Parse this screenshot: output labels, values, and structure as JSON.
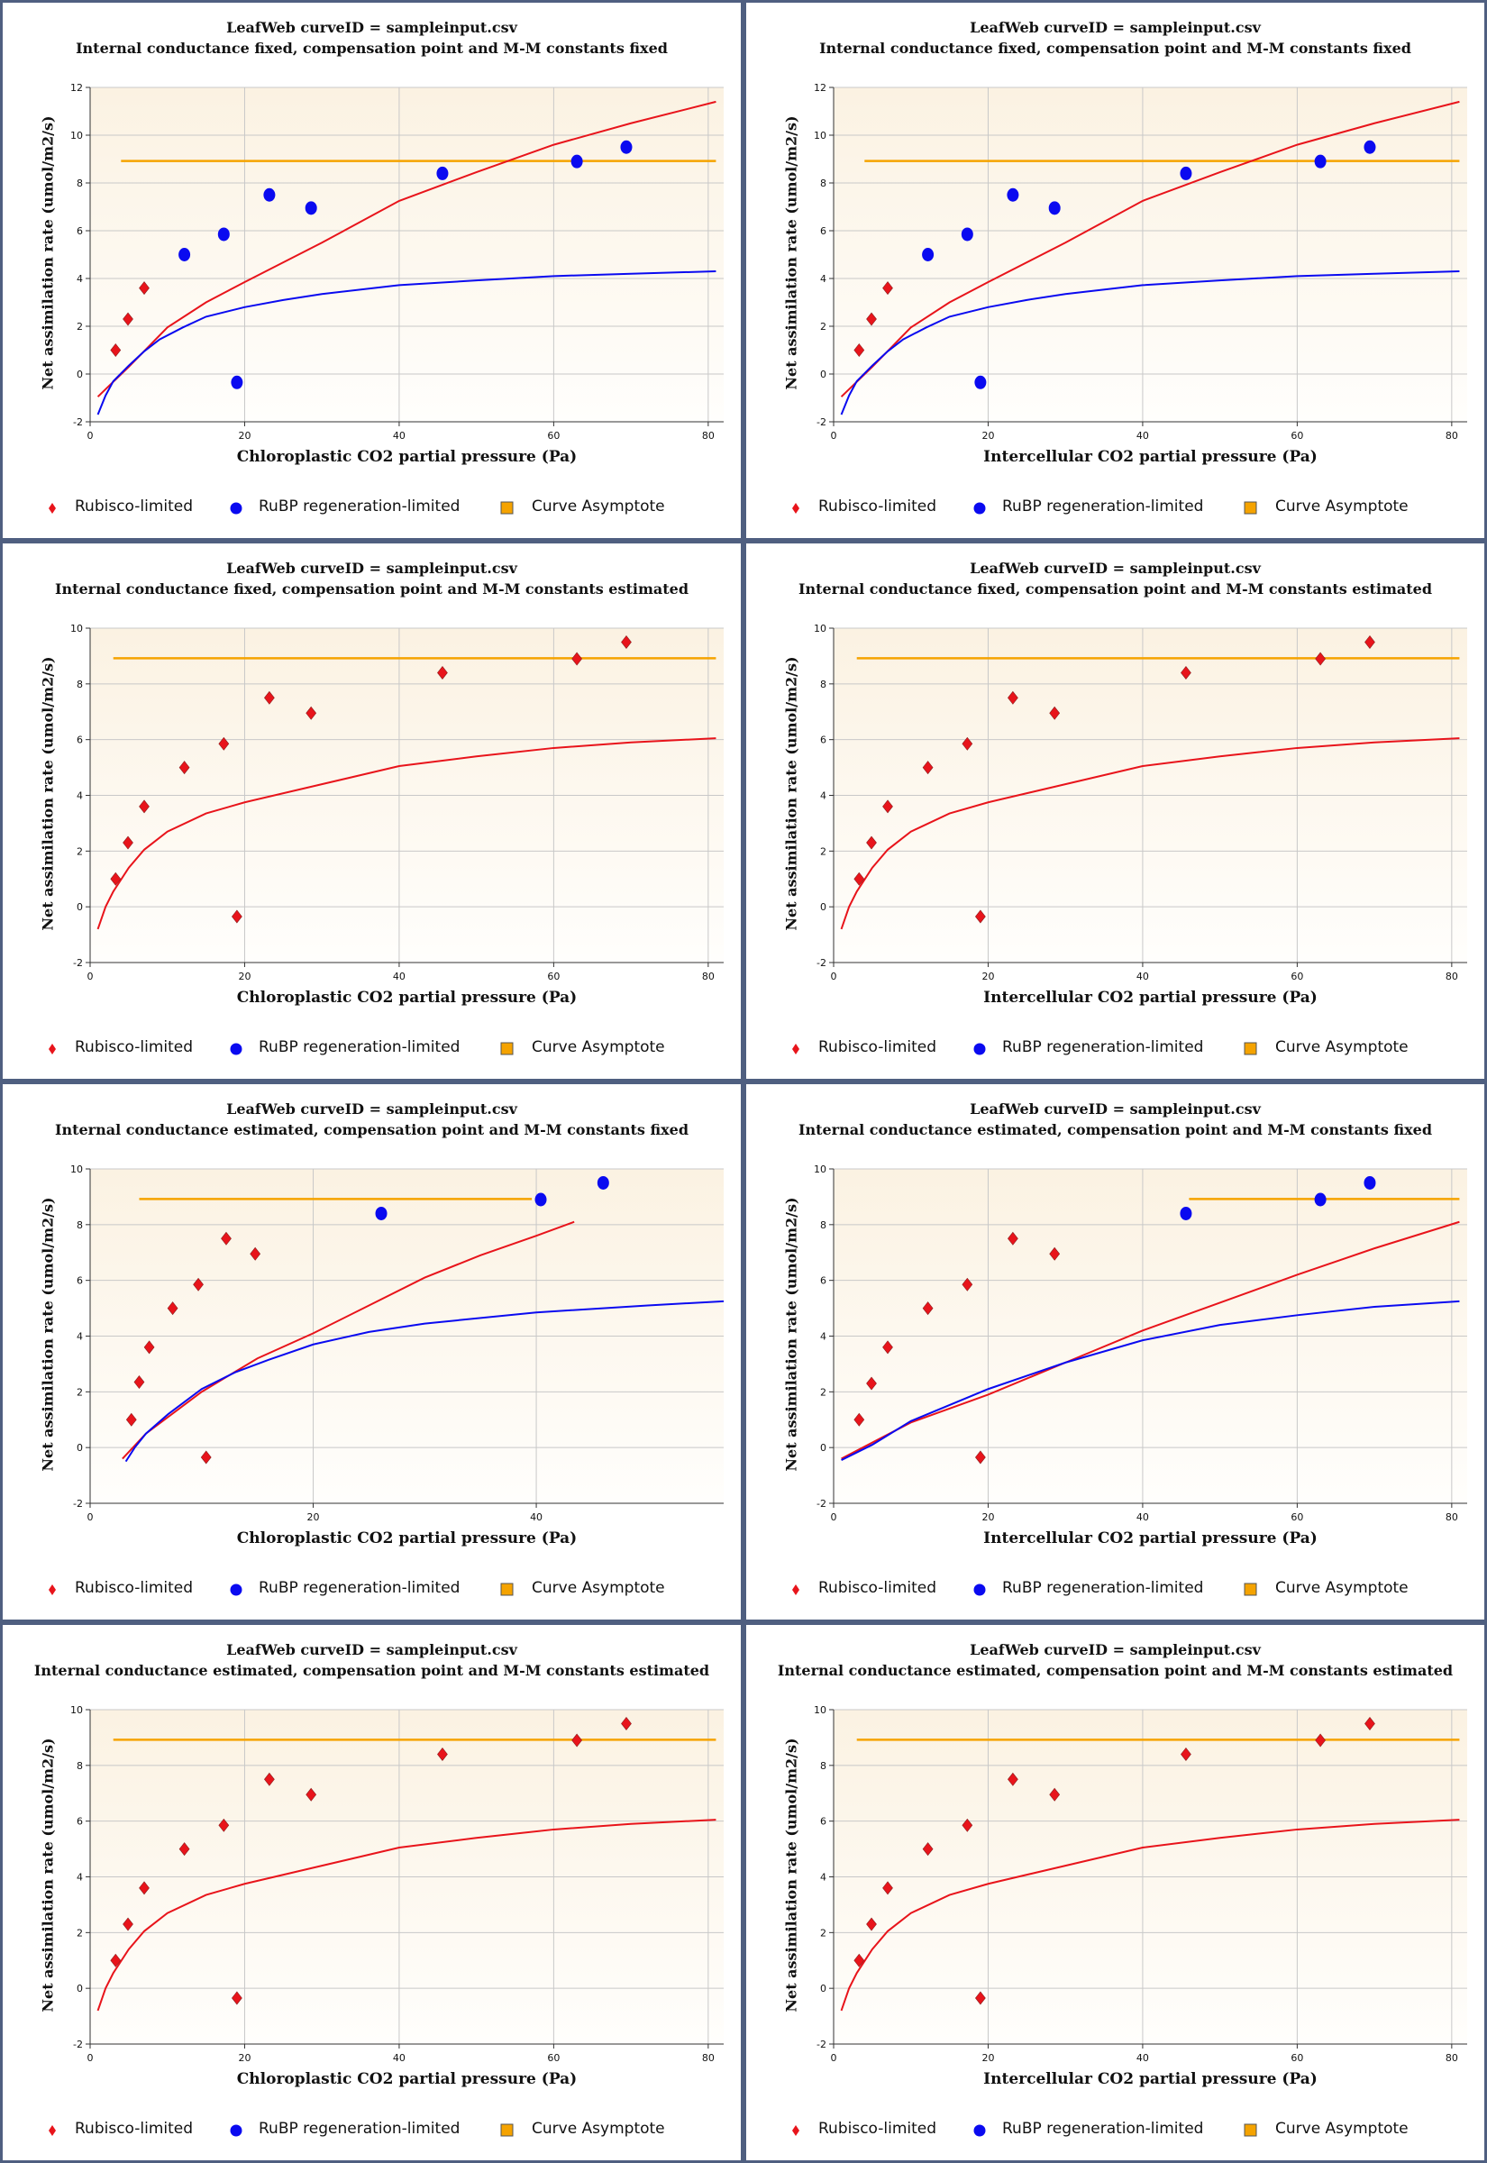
{
  "legend": {
    "rubisco": "Rubisco-limited",
    "rubp": "RuBP regeneration-limited",
    "asymptote": "Curve Asymptote"
  },
  "colors": {
    "rubisco": "#e8141b",
    "rubp": "#0a0af0",
    "asymptote": "#f5a300",
    "plot_bg_top": "#fbf2e2",
    "plot_bg_bottom": "#fffefc",
    "border": "#4f5f80"
  },
  "chart_data": [
    {
      "type": "scatter",
      "title": "LeafWeb curveID = sampleinput.csv",
      "subtitle": "Internal conductance fixed, compensation point and M-M constants fixed",
      "xlabel": "Chloroplastic CO2 partial pressure (Pa)",
      "ylabel": "Net assimilation rate (umol/m2/s)",
      "xlim": [
        0,
        82
      ],
      "ylim": [
        -2,
        12
      ],
      "xticks": [
        "0",
        "20",
        "40",
        "60",
        "80"
      ],
      "yticks": [
        "-2",
        "0",
        "2",
        "4",
        "6",
        "8",
        "10",
        "12"
      ],
      "grid": true,
      "legend_position": "bottom",
      "rubisco_points": [
        [
          3.3,
          1.0
        ],
        [
          4.9,
          2.3
        ],
        [
          7.0,
          3.6
        ]
      ],
      "rubp_points": [
        [
          12.2,
          5.0
        ],
        [
          17.3,
          5.85
        ],
        [
          19.0,
          -0.35
        ],
        [
          23.2,
          7.5
        ],
        [
          28.6,
          6.95
        ],
        [
          45.6,
          8.4
        ],
        [
          63.0,
          8.9
        ],
        [
          69.4,
          9.5
        ]
      ],
      "asymptote": {
        "y": 8.92,
        "x": [
          4,
          81
        ]
      },
      "rubisco_curve": [
        [
          1,
          -0.95
        ],
        [
          5,
          0.3
        ],
        [
          10,
          1.95
        ],
        [
          15,
          3.0
        ],
        [
          20,
          3.85
        ],
        [
          30,
          5.5
        ],
        [
          40,
          7.25
        ],
        [
          50,
          8.45
        ],
        [
          60,
          9.6
        ],
        [
          70,
          10.5
        ],
        [
          81,
          11.4
        ]
      ],
      "rubp_curve": [
        [
          1,
          -1.7
        ],
        [
          2,
          -0.9
        ],
        [
          3,
          -0.3
        ],
        [
          5,
          0.35
        ],
        [
          7,
          0.95
        ],
        [
          9,
          1.45
        ],
        [
          12,
          1.95
        ],
        [
          15,
          2.4
        ],
        [
          20,
          2.8
        ],
        [
          25,
          3.1
        ],
        [
          30,
          3.35
        ],
        [
          40,
          3.72
        ],
        [
          50,
          3.92
        ],
        [
          60,
          4.1
        ],
        [
          70,
          4.2
        ],
        [
          81,
          4.3
        ]
      ]
    },
    {
      "type": "scatter",
      "title": "LeafWeb curveID = sampleinput.csv",
      "subtitle": "Internal conductance fixed, compensation point and M-M constants fixed",
      "xlabel": "Intercellular CO2 partial pressure (Pa)",
      "ylabel": "Net assimilation rate (umol/m2/s)",
      "xlim": [
        0,
        82
      ],
      "ylim": [
        -2,
        12
      ],
      "xticks": [
        "0",
        "20",
        "40",
        "60",
        "80"
      ],
      "yticks": [
        "-2",
        "0",
        "2",
        "4",
        "6",
        "8",
        "10",
        "12"
      ],
      "grid": true,
      "legend_position": "bottom",
      "rubisco_points": [
        [
          3.3,
          1.0
        ],
        [
          4.9,
          2.3
        ],
        [
          7.0,
          3.6
        ]
      ],
      "rubp_points": [
        [
          12.2,
          5.0
        ],
        [
          17.3,
          5.85
        ],
        [
          19.0,
          -0.35
        ],
        [
          23.2,
          7.5
        ],
        [
          28.6,
          6.95
        ],
        [
          45.6,
          8.4
        ],
        [
          63.0,
          8.9
        ],
        [
          69.4,
          9.5
        ]
      ],
      "asymptote": {
        "y": 8.92,
        "x": [
          4,
          81
        ]
      },
      "rubisco_curve": [
        [
          1,
          -0.95
        ],
        [
          5,
          0.3
        ],
        [
          10,
          1.95
        ],
        [
          15,
          3.0
        ],
        [
          20,
          3.85
        ],
        [
          30,
          5.5
        ],
        [
          40,
          7.25
        ],
        [
          50,
          8.45
        ],
        [
          60,
          9.6
        ],
        [
          70,
          10.5
        ],
        [
          81,
          11.4
        ]
      ],
      "rubp_curve": [
        [
          1,
          -1.7
        ],
        [
          2,
          -0.9
        ],
        [
          3,
          -0.3
        ],
        [
          5,
          0.35
        ],
        [
          7,
          0.95
        ],
        [
          9,
          1.45
        ],
        [
          12,
          1.95
        ],
        [
          15,
          2.4
        ],
        [
          20,
          2.8
        ],
        [
          25,
          3.1
        ],
        [
          30,
          3.35
        ],
        [
          40,
          3.72
        ],
        [
          50,
          3.92
        ],
        [
          60,
          4.1
        ],
        [
          70,
          4.2
        ],
        [
          81,
          4.3
        ]
      ]
    },
    {
      "type": "scatter",
      "title": "LeafWeb curveID = sampleinput.csv",
      "subtitle": "Internal conductance fixed, compensation point and M-M constants estimated",
      "xlabel": "Chloroplastic CO2 partial pressure (Pa)",
      "ylabel": "Net assimilation rate (umol/m2/s)",
      "xlim": [
        0,
        82
      ],
      "ylim": [
        -2,
        10
      ],
      "xticks": [
        "0",
        "20",
        "40",
        "60",
        "80"
      ],
      "yticks": [
        "-2",
        "0",
        "2",
        "4",
        "6",
        "8",
        "10"
      ],
      "grid": true,
      "legend_position": "bottom",
      "rubisco_points": [
        [
          3.3,
          1.0
        ],
        [
          4.9,
          2.3
        ],
        [
          7.0,
          3.6
        ],
        [
          12.2,
          5.0
        ],
        [
          17.3,
          5.85
        ],
        [
          19.0,
          -0.35
        ],
        [
          23.2,
          7.5
        ],
        [
          28.6,
          6.95
        ],
        [
          45.6,
          8.4
        ],
        [
          63.0,
          8.9
        ],
        [
          69.4,
          9.5
        ]
      ],
      "rubp_points": [],
      "asymptote": {
        "y": 8.92,
        "x": [
          3,
          81
        ]
      },
      "rubisco_curve": [
        [
          1,
          -0.8
        ],
        [
          2,
          0
        ],
        [
          3,
          0.55
        ],
        [
          5,
          1.4
        ],
        [
          7,
          2.05
        ],
        [
          10,
          2.7
        ],
        [
          15,
          3.35
        ],
        [
          20,
          3.75
        ],
        [
          30,
          4.4
        ],
        [
          40,
          5.05
        ],
        [
          50,
          5.4
        ],
        [
          60,
          5.7
        ],
        [
          70,
          5.9
        ],
        [
          81,
          6.05
        ]
      ],
      "rubp_curve": []
    },
    {
      "type": "scatter",
      "title": "LeafWeb curveID = sampleinput.csv",
      "subtitle": "Internal conductance fixed, compensation point and M-M constants estimated",
      "xlabel": "Intercellular CO2 partial pressure (Pa)",
      "ylabel": "Net assimilation rate (umol/m2/s)",
      "xlim": [
        0,
        82
      ],
      "ylim": [
        -2,
        10
      ],
      "xticks": [
        "0",
        "20",
        "40",
        "60",
        "80"
      ],
      "yticks": [
        "-2",
        "0",
        "2",
        "4",
        "6",
        "8",
        "10"
      ],
      "grid": true,
      "legend_position": "bottom",
      "rubisco_points": [
        [
          3.3,
          1.0
        ],
        [
          4.9,
          2.3
        ],
        [
          7.0,
          3.6
        ],
        [
          12.2,
          5.0
        ],
        [
          17.3,
          5.85
        ],
        [
          19.0,
          -0.35
        ],
        [
          23.2,
          7.5
        ],
        [
          28.6,
          6.95
        ],
        [
          45.6,
          8.4
        ],
        [
          63.0,
          8.9
        ],
        [
          69.4,
          9.5
        ]
      ],
      "rubp_points": [],
      "asymptote": {
        "y": 8.92,
        "x": [
          3,
          81
        ]
      },
      "rubisco_curve": [
        [
          1,
          -0.8
        ],
        [
          2,
          0
        ],
        [
          3,
          0.55
        ],
        [
          5,
          1.4
        ],
        [
          7,
          2.05
        ],
        [
          10,
          2.7
        ],
        [
          15,
          3.35
        ],
        [
          20,
          3.75
        ],
        [
          30,
          4.4
        ],
        [
          40,
          5.05
        ],
        [
          50,
          5.4
        ],
        [
          60,
          5.7
        ],
        [
          70,
          5.9
        ],
        [
          81,
          6.05
        ]
      ],
      "rubp_curve": []
    },
    {
      "type": "scatter",
      "title": "LeafWeb curveID = sampleinput.csv",
      "subtitle": "Internal conductance estimated, compensation point and M-M constants fixed",
      "xlabel": "Chloroplastic CO2 partial pressure (Pa)",
      "ylabel": "Net assimilation rate (umol/m2/s)",
      "xlim": [
        0,
        56.8
      ],
      "ylim": [
        -2,
        10
      ],
      "xticks": [
        "0",
        "20",
        "40"
      ],
      "yticks": [
        "-2",
        "0",
        "2",
        "4",
        "6",
        "8",
        "10"
      ],
      "grid": true,
      "legend_position": "bottom",
      "rubisco_points": [
        [
          3.7,
          1.0
        ],
        [
          4.4,
          2.35
        ],
        [
          5.3,
          3.6
        ],
        [
          7.4,
          5.0
        ],
        [
          9.7,
          5.85
        ],
        [
          10.4,
          -0.35
        ],
        [
          12.2,
          7.5
        ],
        [
          14.8,
          6.95
        ]
      ],
      "rubp_points": [
        [
          26.1,
          8.4
        ],
        [
          40.4,
          8.9
        ],
        [
          46.0,
          9.5
        ]
      ],
      "asymptote": {
        "y": 8.92,
        "x": [
          4.4,
          39.6
        ]
      },
      "rubisco_curve": [
        [
          2.9,
          -0.4
        ],
        [
          5,
          0.5
        ],
        [
          10,
          2.0
        ],
        [
          15,
          3.2
        ],
        [
          20,
          4.1
        ],
        [
          25,
          5.1
        ],
        [
          30,
          6.1
        ],
        [
          35,
          6.9
        ],
        [
          40,
          7.6
        ],
        [
          43.4,
          8.1
        ]
      ],
      "rubp_curve": [
        [
          3.2,
          -0.5
        ],
        [
          4,
          0
        ],
        [
          5,
          0.5
        ],
        [
          7,
          1.2
        ],
        [
          10,
          2.1
        ],
        [
          13,
          2.7
        ],
        [
          16,
          3.15
        ],
        [
          20,
          3.7
        ],
        [
          25,
          4.15
        ],
        [
          30,
          4.45
        ],
        [
          40,
          4.85
        ],
        [
          50,
          5.1
        ],
        [
          56.8,
          5.25
        ]
      ]
    },
    {
      "type": "scatter",
      "title": "LeafWeb curveID = sampleinput.csv",
      "subtitle": "Internal conductance estimated, compensation point and M-M constants fixed",
      "xlabel": "Intercellular CO2 partial pressure (Pa)",
      "ylabel": "Net assimilation rate (umol/m2/s)",
      "xlim": [
        0,
        82
      ],
      "ylim": [
        -2,
        10
      ],
      "xticks": [
        "0",
        "20",
        "40",
        "60",
        "80"
      ],
      "yticks": [
        "-2",
        "0",
        "2",
        "4",
        "6",
        "8",
        "10"
      ],
      "grid": true,
      "legend_position": "bottom",
      "rubisco_points": [
        [
          3.3,
          1.0
        ],
        [
          4.9,
          2.3
        ],
        [
          7.0,
          3.6
        ],
        [
          12.2,
          5.0
        ],
        [
          17.3,
          5.85
        ],
        [
          19.0,
          -0.35
        ],
        [
          23.2,
          7.5
        ],
        [
          28.6,
          6.95
        ]
      ],
      "rubp_points": [
        [
          45.6,
          8.4
        ],
        [
          63.0,
          8.9
        ],
        [
          69.4,
          9.5
        ]
      ],
      "asymptote": {
        "y": 8.92,
        "x": [
          46,
          81
        ]
      },
      "rubisco_curve": [
        [
          1,
          -0.4
        ],
        [
          10,
          0.9
        ],
        [
          20,
          1.9
        ],
        [
          30,
          3.05
        ],
        [
          40,
          4.2
        ],
        [
          50,
          5.2
        ],
        [
          60,
          6.2
        ],
        [
          70,
          7.15
        ],
        [
          81,
          8.1
        ]
      ],
      "rubp_curve": [
        [
          1,
          -0.45
        ],
        [
          5,
          0.1
        ],
        [
          10,
          0.95
        ],
        [
          20,
          2.1
        ],
        [
          30,
          3.05
        ],
        [
          40,
          3.85
        ],
        [
          50,
          4.4
        ],
        [
          60,
          4.75
        ],
        [
          70,
          5.05
        ],
        [
          81,
          5.25
        ]
      ]
    },
    {
      "type": "scatter",
      "title": "LeafWeb curveID = sampleinput.csv",
      "subtitle": "Internal conductance estimated, compensation point and M-M constants estimated",
      "xlabel": "Chloroplastic CO2 partial pressure (Pa)",
      "ylabel": "Net assimilation rate (umol/m2/s)",
      "xlim": [
        0,
        82
      ],
      "ylim": [
        -2,
        10
      ],
      "xticks": [
        "0",
        "20",
        "40",
        "60",
        "80"
      ],
      "yticks": [
        "-2",
        "0",
        "2",
        "4",
        "6",
        "8",
        "10"
      ],
      "grid": true,
      "legend_position": "bottom",
      "rubisco_points": [
        [
          3.3,
          1.0
        ],
        [
          4.9,
          2.3
        ],
        [
          7.0,
          3.6
        ],
        [
          12.2,
          5.0
        ],
        [
          17.3,
          5.85
        ],
        [
          19.0,
          -0.35
        ],
        [
          23.2,
          7.5
        ],
        [
          28.6,
          6.95
        ],
        [
          45.6,
          8.4
        ],
        [
          63.0,
          8.9
        ],
        [
          69.4,
          9.5
        ]
      ],
      "rubp_points": [],
      "asymptote": {
        "y": 8.92,
        "x": [
          3,
          81
        ]
      },
      "rubisco_curve": [
        [
          1,
          -0.8
        ],
        [
          2,
          0
        ],
        [
          3,
          0.55
        ],
        [
          5,
          1.4
        ],
        [
          7,
          2.05
        ],
        [
          10,
          2.7
        ],
        [
          15,
          3.35
        ],
        [
          20,
          3.75
        ],
        [
          30,
          4.4
        ],
        [
          40,
          5.05
        ],
        [
          50,
          5.4
        ],
        [
          60,
          5.7
        ],
        [
          70,
          5.9
        ],
        [
          81,
          6.05
        ]
      ],
      "rubp_curve": []
    },
    {
      "type": "scatter",
      "title": "LeafWeb curveID = sampleinput.csv",
      "subtitle": "Internal conductance estimated, compensation point and M-M constants estimated",
      "xlabel": "Intercellular CO2 partial pressure (Pa)",
      "ylabel": "Net assimilation rate (umol/m2/s)",
      "xlim": [
        0,
        82
      ],
      "ylim": [
        -2,
        10
      ],
      "xticks": [
        "0",
        "20",
        "40",
        "60",
        "80"
      ],
      "yticks": [
        "-2",
        "0",
        "2",
        "4",
        "6",
        "8",
        "10"
      ],
      "grid": true,
      "legend_position": "bottom",
      "rubisco_points": [
        [
          3.3,
          1.0
        ],
        [
          4.9,
          2.3
        ],
        [
          7.0,
          3.6
        ],
        [
          12.2,
          5.0
        ],
        [
          17.3,
          5.85
        ],
        [
          19.0,
          -0.35
        ],
        [
          23.2,
          7.5
        ],
        [
          28.6,
          6.95
        ],
        [
          45.6,
          8.4
        ],
        [
          63.0,
          8.9
        ],
        [
          69.4,
          9.5
        ]
      ],
      "rubp_points": [],
      "asymptote": {
        "y": 8.92,
        "x": [
          3,
          81
        ]
      },
      "rubisco_curve": [
        [
          1,
          -0.8
        ],
        [
          2,
          0
        ],
        [
          3,
          0.55
        ],
        [
          5,
          1.4
        ],
        [
          7,
          2.05
        ],
        [
          10,
          2.7
        ],
        [
          15,
          3.35
        ],
        [
          20,
          3.75
        ],
        [
          30,
          4.4
        ],
        [
          40,
          5.05
        ],
        [
          50,
          5.4
        ],
        [
          60,
          5.7
        ],
        [
          70,
          5.9
        ],
        [
          81,
          6.05
        ]
      ],
      "rubp_curve": []
    }
  ]
}
